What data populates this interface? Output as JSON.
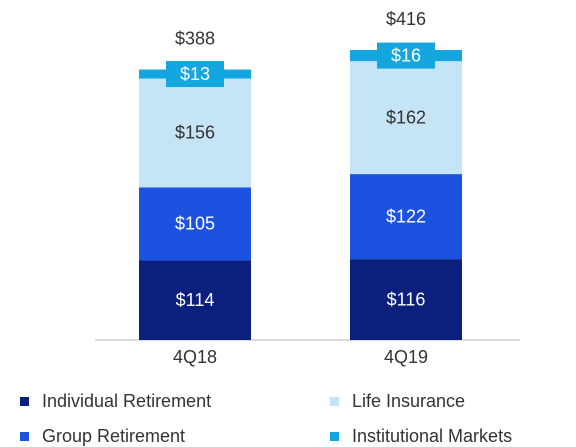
{
  "chart_data": {
    "type": "stacked-bar",
    "categories": [
      "4Q18",
      "4Q19"
    ],
    "series": [
      {
        "name": "Individual Retirement",
        "color": "#0b1f7c",
        "values": [
          114,
          116
        ],
        "value_labels": [
          "$114",
          "$116"
        ]
      },
      {
        "name": "Group Retirement",
        "color": "#1b52e0",
        "values": [
          105,
          122
        ],
        "value_labels": [
          "$105",
          "$122"
        ]
      },
      {
        "name": "Life Insurance",
        "color": "#c5e4f6",
        "values": [
          156,
          162
        ],
        "value_labels": [
          "$156",
          "$162"
        ]
      },
      {
        "name": "Institutional Markets",
        "color": "#14a6de",
        "values": [
          13,
          16
        ],
        "value_labels": [
          "$13",
          "$16"
        ]
      }
    ],
    "totals": [
      388,
      416
    ],
    "total_labels": [
      "$388",
      "$416"
    ]
  }
}
